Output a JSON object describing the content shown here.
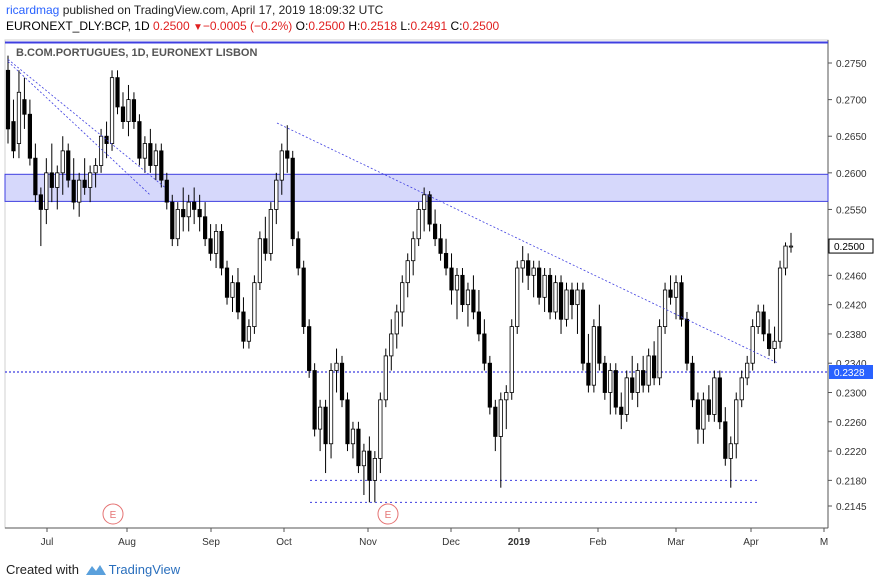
{
  "header": {
    "publisher_user": "ricardmag",
    "publisher_text": " published on TradingView.com, April 17, 2019 18:09:32 UTC",
    "symbol": "EURONEXT_DLY:BCP, 1D",
    "last": "0.2500",
    "change_arrow": "▼",
    "change": "−0.0005 (−0.2%)",
    "o_label": "O:",
    "o_val": "0.2500",
    "h_label": "H:",
    "h_val": "0.2518",
    "l_label": "L:",
    "l_val": "0.2491",
    "c_label": "C:",
    "c_val": "0.2500"
  },
  "footer": {
    "created_with": "Created with",
    "brand": "TradingView"
  },
  "colors": {
    "accent": "#2962ff",
    "down": "#e02020",
    "band_fill": "#d6d8fb",
    "band_line": "#3f3fe0",
    "earnings": "#e57373"
  },
  "chart_data": {
    "type": "candlestick",
    "title": "B.COM.PORTUGUES, 1D, EURONEXT LISBON",
    "price_labels": [
      "0.2750",
      "0.2700",
      "0.2650",
      "0.2600",
      "0.2550",
      "0.2500",
      "0.2460",
      "0.2420",
      "0.2380",
      "0.2340",
      "0.2300",
      "0.2260",
      "0.2220",
      "0.2180",
      "0.2145"
    ],
    "price_ticks": [
      0.275,
      0.27,
      0.265,
      0.26,
      0.255,
      0.25,
      0.246,
      0.242,
      0.238,
      0.234,
      0.23,
      0.226,
      0.222,
      0.218,
      0.2145
    ],
    "x_labels": [
      "Jul",
      "Aug",
      "Sep",
      "Oct",
      "Nov",
      "Dec",
      "2019",
      "Feb",
      "Mar",
      "Apr",
      "M"
    ],
    "current_price": "0.2500",
    "support_label": "0.2328",
    "support_level": 0.2328,
    "top_line_level": 0.2778,
    "resistance_zone": [
      0.2561,
      0.2598
    ],
    "dotted_levels": [
      {
        "value": 0.218,
        "from_month": "Oct",
        "to_month": "Apr"
      },
      {
        "value": 0.215,
        "from_month": "Oct",
        "to_month": "Apr"
      }
    ],
    "trendlines": [
      {
        "from": {
          "month": "Jun",
          "value": 0.2755
        },
        "to": {
          "month": "Jul/Aug",
          "value": 0.258
        }
      },
      {
        "from": {
          "month": "Jun",
          "value": 0.2752
        },
        "to": {
          "month": "Jul/Aug",
          "value": 0.257
        }
      },
      {
        "from": {
          "month": "Oct",
          "value": 0.2668
        },
        "to": {
          "month": "Apr",
          "value": 0.234
        }
      }
    ],
    "earnings_label": "E",
    "ohlc": [
      {
        "o": 0.274,
        "h": 0.276,
        "l": 0.264,
        "c": 0.266
      },
      {
        "o": 0.267,
        "h": 0.27,
        "l": 0.262,
        "c": 0.263
      },
      {
        "o": 0.264,
        "h": 0.274,
        "l": 0.262,
        "c": 0.271
      },
      {
        "o": 0.27,
        "h": 0.273,
        "l": 0.266,
        "c": 0.268
      },
      {
        "o": 0.268,
        "h": 0.27,
        "l": 0.261,
        "c": 0.262
      },
      {
        "o": 0.262,
        "h": 0.264,
        "l": 0.256,
        "c": 0.257
      },
      {
        "o": 0.257,
        "h": 0.258,
        "l": 0.25,
        "c": 0.255
      },
      {
        "o": 0.255,
        "h": 0.262,
        "l": 0.253,
        "c": 0.26
      },
      {
        "o": 0.26,
        "h": 0.264,
        "l": 0.256,
        "c": 0.258
      },
      {
        "o": 0.258,
        "h": 0.261,
        "l": 0.255,
        "c": 0.26
      },
      {
        "o": 0.26,
        "h": 0.265,
        "l": 0.257,
        "c": 0.263
      },
      {
        "o": 0.263,
        "h": 0.264,
        "l": 0.258,
        "c": 0.259
      },
      {
        "o": 0.259,
        "h": 0.262,
        "l": 0.255,
        "c": 0.256
      },
      {
        "o": 0.256,
        "h": 0.26,
        "l": 0.254,
        "c": 0.259
      },
      {
        "o": 0.259,
        "h": 0.262,
        "l": 0.257,
        "c": 0.258
      },
      {
        "o": 0.258,
        "h": 0.261,
        "l": 0.256,
        "c": 0.26
      },
      {
        "o": 0.26,
        "h": 0.262,
        "l": 0.258,
        "c": 0.261
      },
      {
        "o": 0.261,
        "h": 0.266,
        "l": 0.26,
        "c": 0.265
      },
      {
        "o": 0.265,
        "h": 0.267,
        "l": 0.262,
        "c": 0.264
      },
      {
        "o": 0.264,
        "h": 0.274,
        "l": 0.263,
        "c": 0.273
      },
      {
        "o": 0.273,
        "h": 0.274,
        "l": 0.268,
        "c": 0.269
      },
      {
        "o": 0.269,
        "h": 0.271,
        "l": 0.266,
        "c": 0.267
      },
      {
        "o": 0.267,
        "h": 0.272,
        "l": 0.265,
        "c": 0.27
      },
      {
        "o": 0.27,
        "h": 0.271,
        "l": 0.266,
        "c": 0.267
      },
      {
        "o": 0.267,
        "h": 0.268,
        "l": 0.261,
        "c": 0.262
      },
      {
        "o": 0.262,
        "h": 0.265,
        "l": 0.26,
        "c": 0.264
      },
      {
        "o": 0.264,
        "h": 0.266,
        "l": 0.26,
        "c": 0.261
      },
      {
        "o": 0.261,
        "h": 0.264,
        "l": 0.259,
        "c": 0.263
      },
      {
        "o": 0.263,
        "h": 0.264,
        "l": 0.258,
        "c": 0.259
      },
      {
        "o": 0.259,
        "h": 0.26,
        "l": 0.255,
        "c": 0.256
      },
      {
        "o": 0.256,
        "h": 0.257,
        "l": 0.25,
        "c": 0.251
      },
      {
        "o": 0.251,
        "h": 0.256,
        "l": 0.25,
        "c": 0.255
      },
      {
        "o": 0.255,
        "h": 0.258,
        "l": 0.252,
        "c": 0.254
      },
      {
        "o": 0.254,
        "h": 0.257,
        "l": 0.252,
        "c": 0.256
      },
      {
        "o": 0.256,
        "h": 0.258,
        "l": 0.253,
        "c": 0.255
      },
      {
        "o": 0.255,
        "h": 0.257,
        "l": 0.252,
        "c": 0.254
      },
      {
        "o": 0.254,
        "h": 0.256,
        "l": 0.25,
        "c": 0.251
      },
      {
        "o": 0.251,
        "h": 0.253,
        "l": 0.248,
        "c": 0.249
      },
      {
        "o": 0.249,
        "h": 0.253,
        "l": 0.247,
        "c": 0.252
      },
      {
        "o": 0.252,
        "h": 0.253,
        "l": 0.246,
        "c": 0.247
      },
      {
        "o": 0.247,
        "h": 0.248,
        "l": 0.242,
        "c": 0.243
      },
      {
        "o": 0.243,
        "h": 0.246,
        "l": 0.241,
        "c": 0.245
      },
      {
        "o": 0.245,
        "h": 0.247,
        "l": 0.24,
        "c": 0.241
      },
      {
        "o": 0.241,
        "h": 0.243,
        "l": 0.236,
        "c": 0.237
      },
      {
        "o": 0.237,
        "h": 0.24,
        "l": 0.236,
        "c": 0.239
      },
      {
        "o": 0.239,
        "h": 0.246,
        "l": 0.238,
        "c": 0.245
      },
      {
        "o": 0.245,
        "h": 0.252,
        "l": 0.244,
        "c": 0.251
      },
      {
        "o": 0.251,
        "h": 0.254,
        "l": 0.248,
        "c": 0.249
      },
      {
        "o": 0.249,
        "h": 0.256,
        "l": 0.248,
        "c": 0.255
      },
      {
        "o": 0.255,
        "h": 0.26,
        "l": 0.253,
        "c": 0.259
      },
      {
        "o": 0.259,
        "h": 0.264,
        "l": 0.257,
        "c": 0.263
      },
      {
        "o": 0.263,
        "h": 0.2665,
        "l": 0.26,
        "c": 0.262
      },
      {
        "o": 0.262,
        "h": 0.263,
        "l": 0.25,
        "c": 0.251
      },
      {
        "o": 0.251,
        "h": 0.252,
        "l": 0.246,
        "c": 0.247
      },
      {
        "o": 0.247,
        "h": 0.248,
        "l": 0.238,
        "c": 0.239
      },
      {
        "o": 0.239,
        "h": 0.24,
        "l": 0.232,
        "c": 0.233
      },
      {
        "o": 0.233,
        "h": 0.234,
        "l": 0.224,
        "c": 0.225
      },
      {
        "o": 0.225,
        "h": 0.229,
        "l": 0.222,
        "c": 0.228
      },
      {
        "o": 0.228,
        "h": 0.229,
        "l": 0.219,
        "c": 0.223
      },
      {
        "o": 0.223,
        "h": 0.234,
        "l": 0.221,
        "c": 0.233
      },
      {
        "o": 0.233,
        "h": 0.236,
        "l": 0.23,
        "c": 0.234
      },
      {
        "o": 0.234,
        "h": 0.235,
        "l": 0.228,
        "c": 0.229
      },
      {
        "o": 0.229,
        "h": 0.23,
        "l": 0.222,
        "c": 0.223
      },
      {
        "o": 0.223,
        "h": 0.226,
        "l": 0.221,
        "c": 0.225
      },
      {
        "o": 0.225,
        "h": 0.226,
        "l": 0.219,
        "c": 0.22
      },
      {
        "o": 0.22,
        "h": 0.223,
        "l": 0.216,
        "c": 0.222
      },
      {
        "o": 0.222,
        "h": 0.224,
        "l": 0.215,
        "c": 0.218
      },
      {
        "o": 0.218,
        "h": 0.222,
        "l": 0.215,
        "c": 0.221
      },
      {
        "o": 0.221,
        "h": 0.23,
        "l": 0.219,
        "c": 0.229
      },
      {
        "o": 0.229,
        "h": 0.236,
        "l": 0.228,
        "c": 0.235
      },
      {
        "o": 0.235,
        "h": 0.24,
        "l": 0.233,
        "c": 0.238
      },
      {
        "o": 0.238,
        "h": 0.242,
        "l": 0.236,
        "c": 0.241
      },
      {
        "o": 0.241,
        "h": 0.246,
        "l": 0.239,
        "c": 0.245
      },
      {
        "o": 0.245,
        "h": 0.249,
        "l": 0.243,
        "c": 0.248
      },
      {
        "o": 0.248,
        "h": 0.252,
        "l": 0.246,
        "c": 0.251
      },
      {
        "o": 0.251,
        "h": 0.256,
        "l": 0.25,
        "c": 0.255
      },
      {
        "o": 0.255,
        "h": 0.258,
        "l": 0.252,
        "c": 0.257
      },
      {
        "o": 0.257,
        "h": 0.2575,
        "l": 0.252,
        "c": 0.253
      },
      {
        "o": 0.253,
        "h": 0.255,
        "l": 0.25,
        "c": 0.251
      },
      {
        "o": 0.251,
        "h": 0.253,
        "l": 0.248,
        "c": 0.249
      },
      {
        "o": 0.249,
        "h": 0.251,
        "l": 0.246,
        "c": 0.247
      },
      {
        "o": 0.247,
        "h": 0.249,
        "l": 0.242,
        "c": 0.244
      },
      {
        "o": 0.244,
        "h": 0.247,
        "l": 0.24,
        "c": 0.246
      },
      {
        "o": 0.246,
        "h": 0.247,
        "l": 0.241,
        "c": 0.242
      },
      {
        "o": 0.242,
        "h": 0.245,
        "l": 0.239,
        "c": 0.244
      },
      {
        "o": 0.244,
        "h": 0.246,
        "l": 0.24,
        "c": 0.241
      },
      {
        "o": 0.241,
        "h": 0.244,
        "l": 0.237,
        "c": 0.238
      },
      {
        "o": 0.238,
        "h": 0.24,
        "l": 0.233,
        "c": 0.234
      },
      {
        "o": 0.234,
        "h": 0.235,
        "l": 0.227,
        "c": 0.228
      },
      {
        "o": 0.228,
        "h": 0.229,
        "l": 0.222,
        "c": 0.224
      },
      {
        "o": 0.224,
        "h": 0.23,
        "l": 0.217,
        "c": 0.229
      },
      {
        "o": 0.229,
        "h": 0.231,
        "l": 0.225,
        "c": 0.23
      },
      {
        "o": 0.23,
        "h": 0.24,
        "l": 0.229,
        "c": 0.239
      },
      {
        "o": 0.239,
        "h": 0.248,
        "l": 0.238,
        "c": 0.247
      },
      {
        "o": 0.247,
        "h": 0.25,
        "l": 0.245,
        "c": 0.248
      },
      {
        "o": 0.248,
        "h": 0.249,
        "l": 0.244,
        "c": 0.246
      },
      {
        "o": 0.246,
        "h": 0.248,
        "l": 0.243,
        "c": 0.247
      },
      {
        "o": 0.247,
        "h": 0.248,
        "l": 0.242,
        "c": 0.243
      },
      {
        "o": 0.243,
        "h": 0.247,
        "l": 0.241,
        "c": 0.246
      },
      {
        "o": 0.246,
        "h": 0.247,
        "l": 0.24,
        "c": 0.241
      },
      {
        "o": 0.241,
        "h": 0.246,
        "l": 0.24,
        "c": 0.245
      },
      {
        "o": 0.245,
        "h": 0.246,
        "l": 0.238,
        "c": 0.24
      },
      {
        "o": 0.24,
        "h": 0.245,
        "l": 0.239,
        "c": 0.244
      },
      {
        "o": 0.244,
        "h": 0.245,
        "l": 0.24,
        "c": 0.242
      },
      {
        "o": 0.242,
        "h": 0.245,
        "l": 0.238,
        "c": 0.244
      },
      {
        "o": 0.244,
        "h": 0.245,
        "l": 0.233,
        "c": 0.234
      },
      {
        "o": 0.234,
        "h": 0.238,
        "l": 0.23,
        "c": 0.231
      },
      {
        "o": 0.231,
        "h": 0.24,
        "l": 0.23,
        "c": 0.239
      },
      {
        "o": 0.239,
        "h": 0.242,
        "l": 0.233,
        "c": 0.234
      },
      {
        "o": 0.234,
        "h": 0.235,
        "l": 0.229,
        "c": 0.23
      },
      {
        "o": 0.23,
        "h": 0.234,
        "l": 0.227,
        "c": 0.233
      },
      {
        "o": 0.233,
        "h": 0.234,
        "l": 0.227,
        "c": 0.228
      },
      {
        "o": 0.228,
        "h": 0.23,
        "l": 0.225,
        "c": 0.227
      },
      {
        "o": 0.227,
        "h": 0.233,
        "l": 0.226,
        "c": 0.232
      },
      {
        "o": 0.232,
        "h": 0.235,
        "l": 0.229,
        "c": 0.23
      },
      {
        "o": 0.23,
        "h": 0.234,
        "l": 0.228,
        "c": 0.233
      },
      {
        "o": 0.233,
        "h": 0.235,
        "l": 0.23,
        "c": 0.231
      },
      {
        "o": 0.231,
        "h": 0.236,
        "l": 0.23,
        "c": 0.235
      },
      {
        "o": 0.235,
        "h": 0.237,
        "l": 0.231,
        "c": 0.232
      },
      {
        "o": 0.232,
        "h": 0.24,
        "l": 0.231,
        "c": 0.239
      },
      {
        "o": 0.239,
        "h": 0.245,
        "l": 0.238,
        "c": 0.244
      },
      {
        "o": 0.244,
        "h": 0.246,
        "l": 0.242,
        "c": 0.243
      },
      {
        "o": 0.243,
        "h": 0.246,
        "l": 0.24,
        "c": 0.245
      },
      {
        "o": 0.245,
        "h": 0.246,
        "l": 0.239,
        "c": 0.24
      },
      {
        "o": 0.24,
        "h": 0.241,
        "l": 0.233,
        "c": 0.234
      },
      {
        "o": 0.234,
        "h": 0.235,
        "l": 0.228,
        "c": 0.229
      },
      {
        "o": 0.229,
        "h": 0.23,
        "l": 0.223,
        "c": 0.225
      },
      {
        "o": 0.225,
        "h": 0.23,
        "l": 0.223,
        "c": 0.229
      },
      {
        "o": 0.229,
        "h": 0.231,
        "l": 0.226,
        "c": 0.227
      },
      {
        "o": 0.227,
        "h": 0.233,
        "l": 0.226,
        "c": 0.232
      },
      {
        "o": 0.232,
        "h": 0.233,
        "l": 0.225,
        "c": 0.226
      },
      {
        "o": 0.226,
        "h": 0.228,
        "l": 0.22,
        "c": 0.221
      },
      {
        "o": 0.221,
        "h": 0.224,
        "l": 0.217,
        "c": 0.223
      },
      {
        "o": 0.223,
        "h": 0.23,
        "l": 0.221,
        "c": 0.229
      },
      {
        "o": 0.229,
        "h": 0.233,
        "l": 0.228,
        "c": 0.232
      },
      {
        "o": 0.232,
        "h": 0.235,
        "l": 0.231,
        "c": 0.234
      },
      {
        "o": 0.234,
        "h": 0.24,
        "l": 0.233,
        "c": 0.239
      },
      {
        "o": 0.239,
        "h": 0.242,
        "l": 0.238,
        "c": 0.241
      },
      {
        "o": 0.241,
        "h": 0.242,
        "l": 0.237,
        "c": 0.238
      },
      {
        "o": 0.238,
        "h": 0.24,
        "l": 0.235,
        "c": 0.236
      },
      {
        "o": 0.236,
        "h": 0.239,
        "l": 0.234,
        "c": 0.237
      },
      {
        "o": 0.237,
        "h": 0.248,
        "l": 0.236,
        "c": 0.247
      },
      {
        "o": 0.247,
        "h": 0.2505,
        "l": 0.246,
        "c": 0.25
      },
      {
        "o": 0.25,
        "h": 0.2518,
        "l": 0.2491,
        "c": 0.25
      }
    ]
  }
}
